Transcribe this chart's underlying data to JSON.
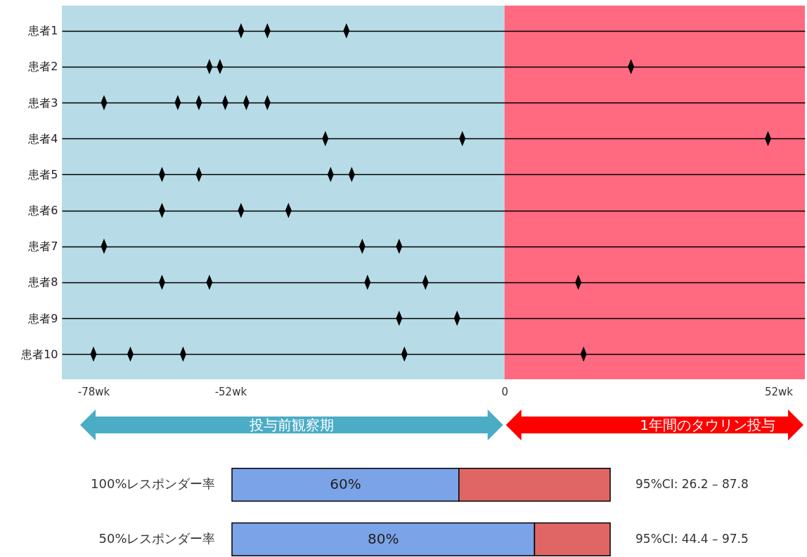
{
  "chart_data": [
    {
      "type": "scatter",
      "orientation": "horizontal",
      "categories": [
        "患者1",
        "患者2",
        "患者3",
        "患者4",
        "患者5",
        "患者6",
        "患者7",
        "患者8",
        "患者9",
        "患者10"
      ],
      "series": [
        {
          "color": "#000000",
          "values": [
            -50,
            -56,
            -76,
            -34,
            -65,
            -65,
            -76,
            -65,
            -20,
            -78
          ]
        },
        {
          "color": "#000000",
          "values": [
            -45,
            -54,
            -62,
            -8,
            -58,
            -50,
            -27,
            -56,
            -9,
            -71
          ]
        },
        {
          "color": "#000000",
          "values": [
            -30,
            24,
            -58,
            50,
            -33,
            -41,
            -20,
            -26,
            null,
            -61
          ]
        },
        {
          "color": "#000000",
          "values": [
            null,
            null,
            -53,
            null,
            -29,
            null,
            null,
            -15,
            null,
            -19
          ]
        },
        {
          "color": "#000000",
          "values": [
            null,
            null,
            -49,
            null,
            null,
            null,
            null,
            14,
            null,
            15
          ]
        },
        {
          "color": "#000000",
          "values": [
            null,
            null,
            -45,
            null,
            null,
            null,
            null,
            null,
            null,
            null
          ]
        }
      ],
      "xlim": [
        -84,
        57
      ],
      "xticks": [
        {
          "value": -78,
          "label": "-78wk"
        },
        {
          "value": -52,
          "label": "-52wk"
        },
        0,
        {
          "value": 52,
          "label": "52wk"
        }
      ],
      "grid": "y",
      "marker": "diamond",
      "bands": [
        {
          "axis": "x",
          "from": -84,
          "to": 0,
          "label": "投与前観察期",
          "color": "#b7dce7"
        },
        {
          "axis": "x",
          "from": 0,
          "to": 57,
          "label": "1年間のタウリン投与",
          "color": "#ff6a80"
        }
      ]
    },
    {
      "type": "bar",
      "orientation": "horizontal",
      "stacked": true,
      "categories": [
        "100%レスポンダー率",
        "50%レスポンダー率"
      ],
      "series": [
        {
          "color": "#7ba3e8",
          "values": [
            60,
            80
          ],
          "value_labels": [
            "60%",
            "80%"
          ]
        },
        {
          "color": "#e06666",
          "values": [
            40,
            20
          ]
        }
      ],
      "annotations": [
        "95%CI: 26.2 – 87.8",
        "95%CI: 44.4 – 97.5"
      ]
    }
  ]
}
